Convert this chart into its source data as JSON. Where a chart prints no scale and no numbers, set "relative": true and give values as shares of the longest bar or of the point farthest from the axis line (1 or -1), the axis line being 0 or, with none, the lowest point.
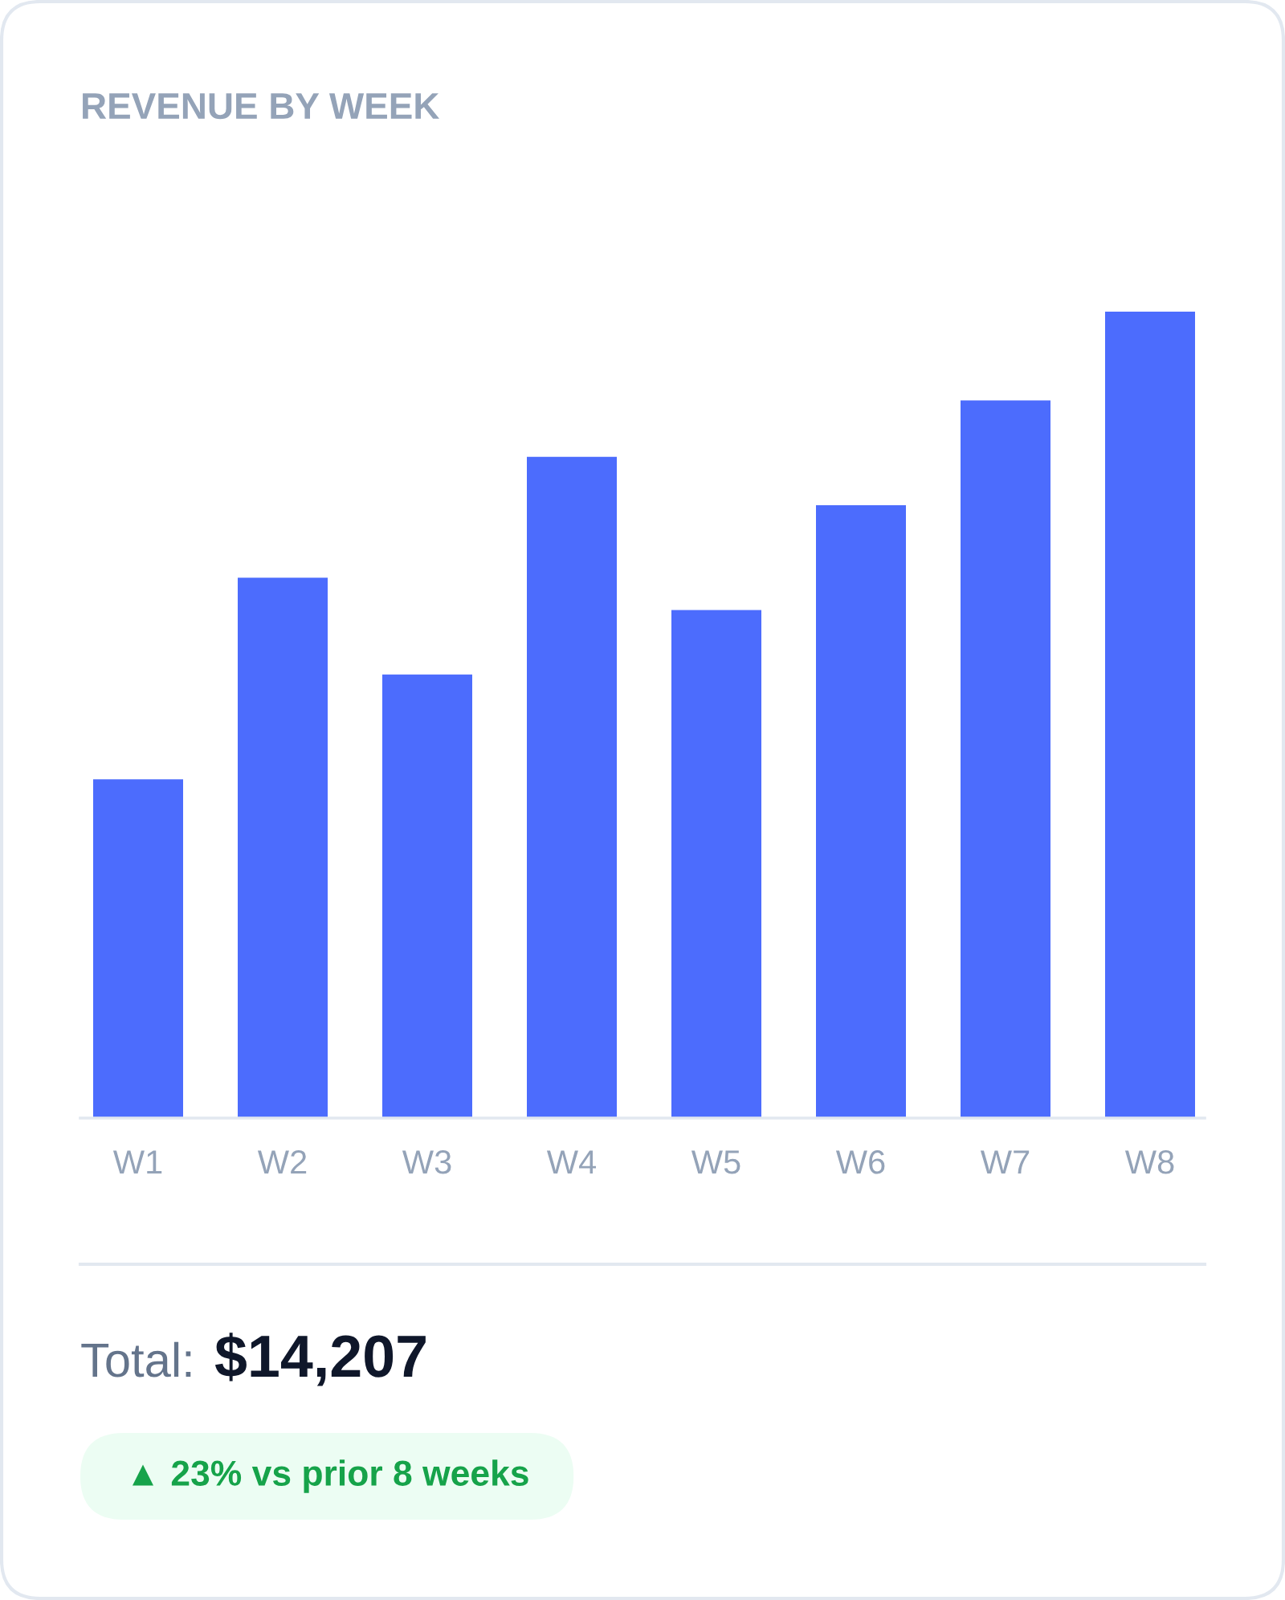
{
  "chart_data": {
    "type": "bar",
    "title": "REVENUE BY WEEK",
    "categories": [
      "W1",
      "W2",
      "W3",
      "W4",
      "W5",
      "W6",
      "W7",
      "W8"
    ],
    "values": [
      0.42,
      0.67,
      0.55,
      0.82,
      0.63,
      0.76,
      0.89,
      1
    ],
    "relative": true,
    "color": "#4c6cfd",
    "grid": false,
    "annotations": [
      "Total:",
      "$14,207",
      "▲ 23% vs prior 8 weeks"
    ]
  }
}
